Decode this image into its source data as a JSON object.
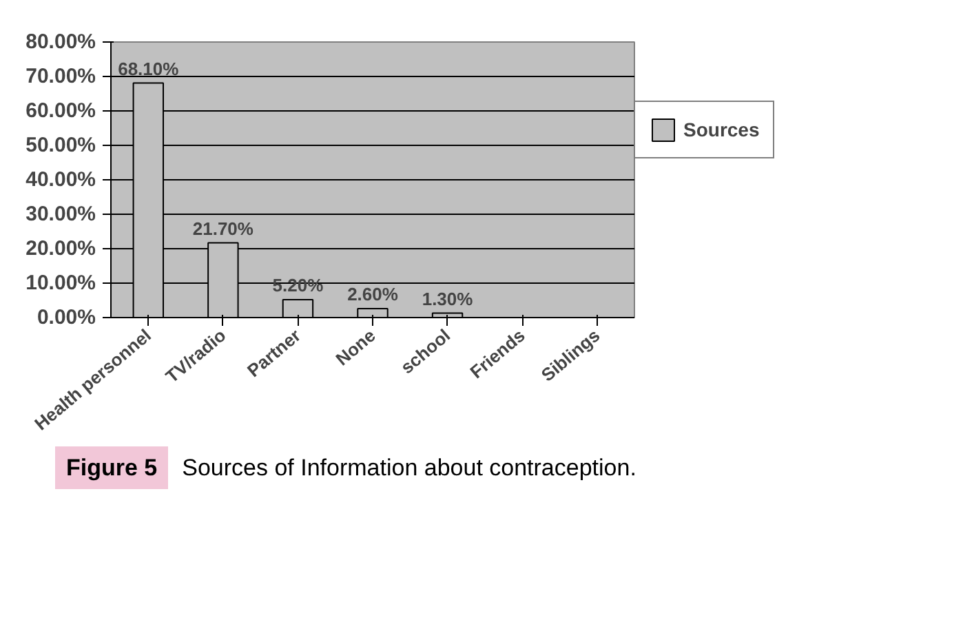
{
  "chart_data": {
    "type": "bar",
    "categories": [
      "Health personnel",
      "TV/radio",
      "Partner",
      "None",
      "school",
      "Friends",
      "Siblings"
    ],
    "series": [
      {
        "name": "Sources",
        "color": "#c0c0c0",
        "values": [
          68.1,
          21.7,
          5.2,
          2.6,
          1.3,
          null,
          null
        ]
      }
    ],
    "value_labels": [
      "68.10%",
      "21.70%",
      "5.20%",
      "2.60%",
      "1.30%",
      null,
      null
    ],
    "ylim": [
      0,
      80
    ],
    "yticks": [
      {
        "value": 0,
        "label": "0.00%"
      },
      {
        "value": 10,
        "label": "10.00%"
      },
      {
        "value": 20,
        "label": "20.00%"
      },
      {
        "value": 30,
        "label": "30.00%"
      },
      {
        "value": 40,
        "label": "40.00%"
      },
      {
        "value": 50,
        "label": "50.00%"
      },
      {
        "value": 60,
        "label": "60.00%"
      },
      {
        "value": 70,
        "label": "70.00%"
      },
      {
        "value": 80,
        "label": "80.00%"
      }
    ],
    "grid": "y",
    "legend": "right",
    "annotations": [
      "Figure 5",
      "Sources of Information about contraception."
    ]
  }
}
